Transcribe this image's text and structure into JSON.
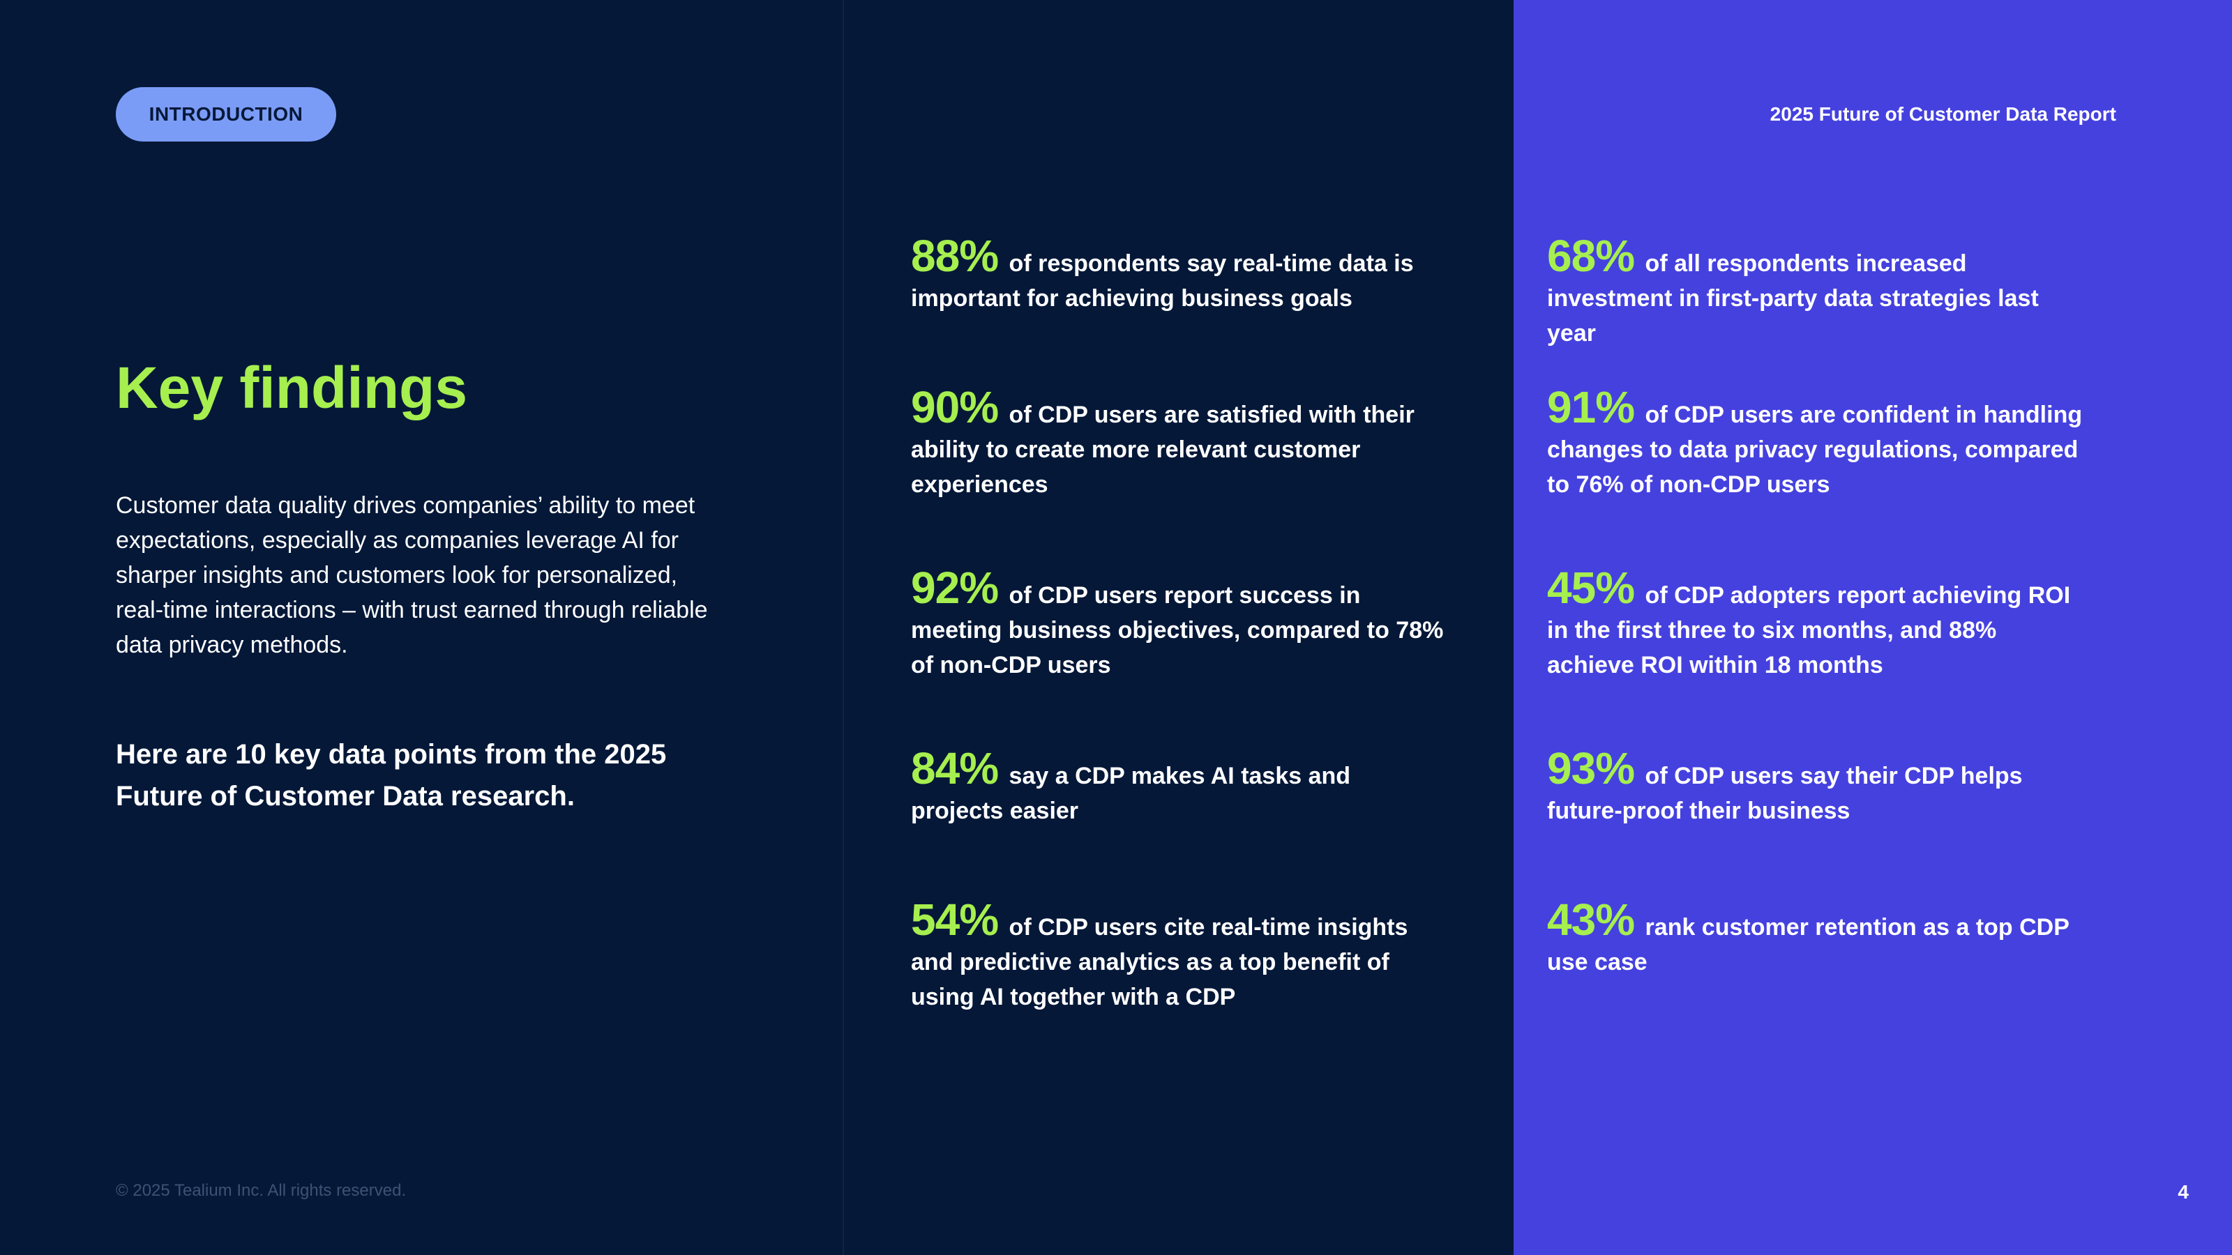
{
  "header": {
    "section_label": "INTRODUCTION",
    "report_title": "2025 Future of Customer Data Report"
  },
  "intro": {
    "heading": "Key findings",
    "body": "Customer data quality drives companies’ ability to meet expectations, especially as companies leverage AI for sharper insights and customers look for personalized, real-time interactions – with trust earned through reliable data privacy methods.",
    "callout": "Here are 10 key data points from the 2025 Future of Customer Data research."
  },
  "stats_left": [
    {
      "pct": "88%",
      "text": "of respondents say real-time data is important for achieving business goals"
    },
    {
      "pct": "90%",
      "text": "of CDP users are satisfied with their ability to create more relevant customer experiences"
    },
    {
      "pct": "92%",
      "text": "of CDP users report success in meeting business objectives, compared to 78% of non-CDP users"
    },
    {
      "pct": "84%",
      "text": "say a CDP makes AI tasks and projects easier"
    },
    {
      "pct": "54%",
      "text": "of CDP users cite real-time insights and predictive analytics as a top benefit of using AI together with a CDP"
    }
  ],
  "stats_right": [
    {
      "pct": "68%",
      "text": "of all respondents increased investment in first-party data strategies last year"
    },
    {
      "pct": "91%",
      "text": "of CDP users are confident in handling changes to data privacy regulations, compared to 76% of non-CDP users"
    },
    {
      "pct": "45%",
      "text": "of CDP adopters report achieving ROI in the first three to six months, and 88% achieve ROI within 18 months"
    },
    {
      "pct": "93%",
      "text": "of CDP users say their CDP helps future-proof their business"
    },
    {
      "pct": "43%",
      "text": "rank customer retention as a top CDP use case"
    }
  ],
  "footer": {
    "copyright": "© 2025 Tealium Inc. All rights reserved.",
    "page_number": "4"
  },
  "colors": {
    "background": "#051838",
    "accent_panel": "#4541df",
    "highlight": "#a6ef4f",
    "pill": "#7b9cf6"
  }
}
